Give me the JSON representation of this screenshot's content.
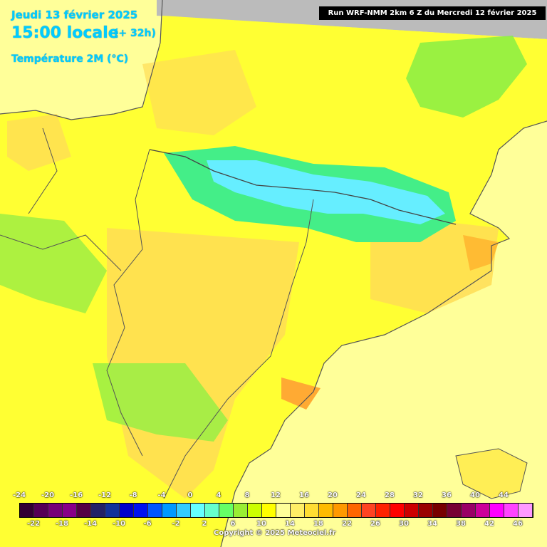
{
  "header": {
    "date": "Jeudi 13 février 2025",
    "time": "15:00 locale",
    "lead": "(+ 32h)",
    "parameter": "Température 2M (°C)",
    "run": "Run WRF-NMM 2km 6 Z du Mercredi 12 février 2025"
  },
  "colors": {
    "sea": "#ffff99",
    "land_warm": "#ffff33",
    "land_mild": "#ffdd55",
    "land_hot": "#ffbb33",
    "land_cold": "#99ee44",
    "mountain_cold": "#33ee99",
    "mountain_icy": "#66eeff",
    "border": "#555555"
  },
  "legend": {
    "top_labels": [
      "-24",
      "-20",
      "-16",
      "-12",
      "-8",
      "-4",
      "0",
      "4",
      "8",
      "12",
      "16",
      "20",
      "24",
      "28",
      "32",
      "36",
      "40",
      "44"
    ],
    "bottom_labels": [
      "-22",
      "-18",
      "-14",
      "-10",
      "-6",
      "-2",
      "2",
      "6",
      "10",
      "14",
      "18",
      "22",
      "26",
      "30",
      "34",
      "38",
      "42",
      "46"
    ],
    "swatches": [
      "#330033",
      "#550055",
      "#770077",
      "#880088",
      "#550044",
      "#222266",
      "#113399",
      "#0000cc",
      "#0011ee",
      "#0055ff",
      "#0099ff",
      "#33ccff",
      "#66ffff",
      "#66ffcc",
      "#66ff66",
      "#99ee33",
      "#ccff00",
      "#ffff00",
      "#ffff99",
      "#ffee66",
      "#ffdd33",
      "#ffbb00",
      "#ff9900",
      "#ff6600",
      "#ff4422",
      "#ff2200",
      "#ff0000",
      "#cc0000",
      "#990000",
      "#770000",
      "#770033",
      "#990066",
      "#cc0099",
      "#ff00ff",
      "#ff44ff",
      "#ff99ff"
    ]
  },
  "copyright": "Copyright © 2025 Meteociel.fr"
}
